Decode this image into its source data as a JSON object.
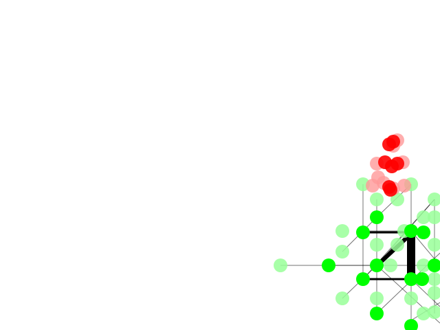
{
  "scene": {
    "background_color": "#ffffff",
    "node_color": "#00ff00",
    "ghost_node_color": "#99ff99",
    "edge_color": "#000000",
    "particle_color": "#ff0000",
    "ghost_particle_color": "#ff9999"
  }
}
